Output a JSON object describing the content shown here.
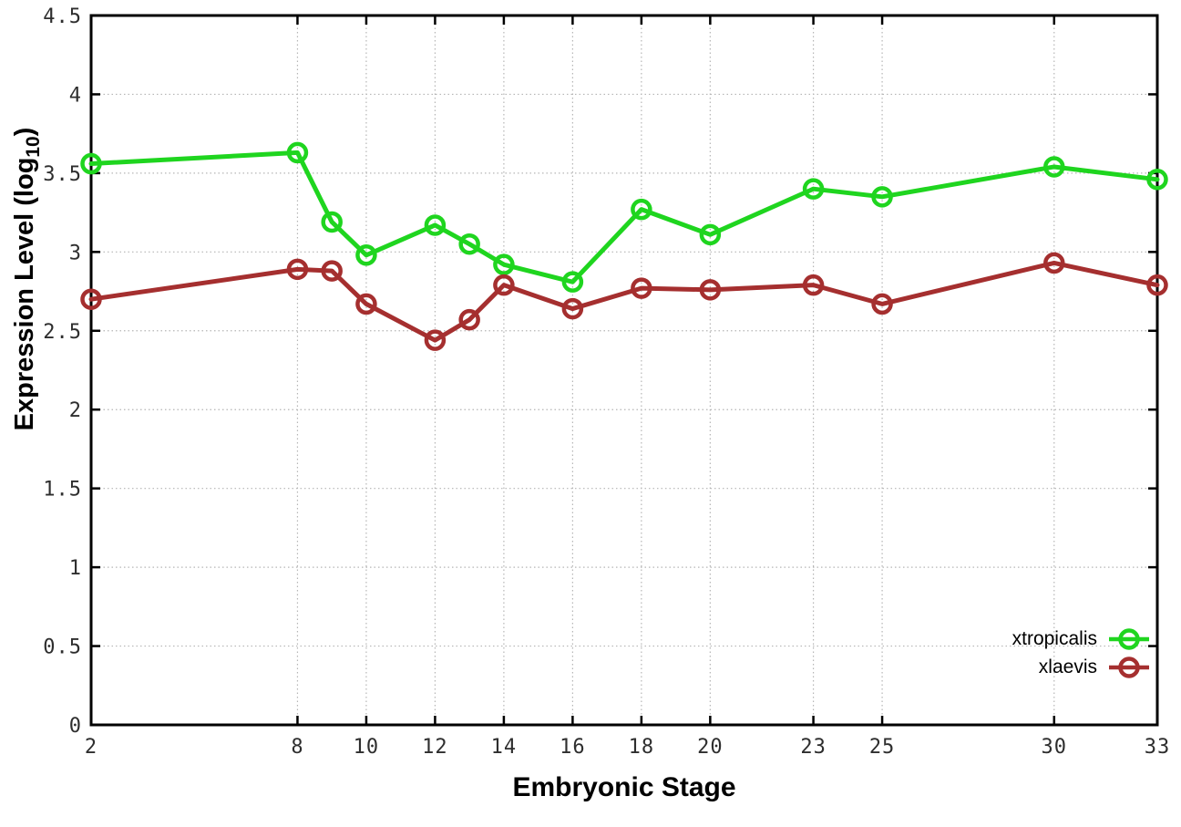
{
  "chart_data": {
    "type": "line",
    "title": "",
    "xlabel": "Embryonic Stage",
    "ylabel": "Expression Level (log10)",
    "ylabel_parts": {
      "prefix": "Expression Level (log",
      "sub": "10",
      "suffix": ")"
    },
    "x": [
      2,
      8,
      9,
      10,
      12,
      13,
      14,
      16,
      18,
      20,
      23,
      25,
      30,
      33
    ],
    "series": [
      {
        "name": "xtropicalis",
        "color": "#1fd51f",
        "values": [
          3.56,
          3.63,
          3.19,
          2.98,
          3.17,
          3.05,
          2.92,
          2.81,
          3.27,
          3.11,
          3.4,
          3.35,
          3.54,
          3.46
        ]
      },
      {
        "name": "xlaevis",
        "color": "#a52f2f",
        "values": [
          2.7,
          2.89,
          2.88,
          2.67,
          2.44,
          2.57,
          2.79,
          2.64,
          2.77,
          2.76,
          2.79,
          2.67,
          2.93,
          2.79
        ]
      }
    ],
    "xticks": [
      2,
      8,
      10,
      12,
      14,
      16,
      18,
      20,
      23,
      25,
      30,
      33
    ],
    "xtick_labels": [
      "2",
      "8",
      "10",
      "12",
      "14",
      "16",
      "18",
      "20",
      "23",
      "25",
      "30",
      "33"
    ],
    "yticks": [
      0,
      0.5,
      1,
      1.5,
      2,
      2.5,
      3,
      3.5,
      4,
      4.5
    ],
    "ytick_labels": [
      "0",
      "0.5",
      "1",
      "1.5",
      "2",
      "2.5",
      "3",
      "3.5",
      "4",
      "4.5"
    ],
    "xlim": [
      2,
      33
    ],
    "ylim": [
      0,
      4.5
    ],
    "grid": true,
    "legend_position": "bottom-right",
    "marker": "open-circle"
  },
  "colors": {
    "grid": "#b5b5b5",
    "axis": "#000000",
    "tick_label": "#2e2e2e",
    "background": "#ffffff"
  }
}
